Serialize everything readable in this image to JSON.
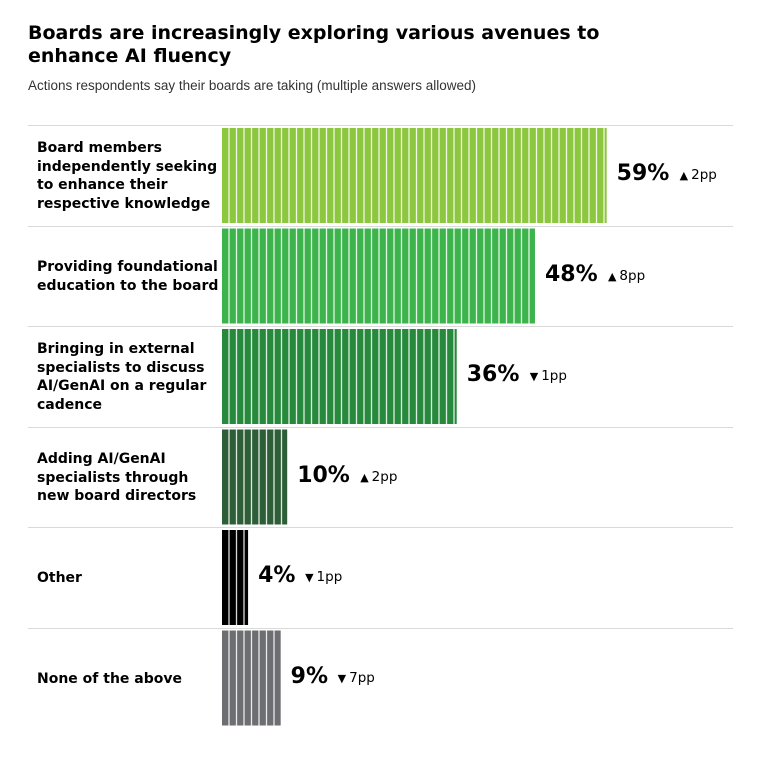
{
  "chart_data": {
    "type": "bar",
    "orientation": "horizontal",
    "title": "Boards are increasingly exploring various avenues to enhance AI fluency",
    "subtitle": "Actions respondents say their boards are taking (multiple answers allowed)",
    "value_format": "{v}%",
    "xlim": [
      0,
      100
    ],
    "grid": false,
    "categories": [
      "Board members independently seeking to enhance their respective knowledge",
      "Providing foundational education to the board",
      "Bringing in external specialists to discuss AI/GenAI on a regular cadence",
      "Adding AI/GenAI specialists through new board directors",
      "Other",
      "None of the above"
    ],
    "values": [
      59,
      48,
      36,
      10,
      4,
      9
    ],
    "changes": [
      {
        "direction": "up",
        "label": "2pp"
      },
      {
        "direction": "up",
        "label": "8pp"
      },
      {
        "direction": "down",
        "label": "1pp"
      },
      {
        "direction": "up",
        "label": "2pp"
      },
      {
        "direction": "down",
        "label": "1pp"
      },
      {
        "direction": "down",
        "label": "7pp"
      }
    ],
    "colors": [
      "#8dc63f",
      "#3cb44b",
      "#26893c",
      "#2e5e38",
      "#000000",
      "#6d6e71"
    ]
  }
}
